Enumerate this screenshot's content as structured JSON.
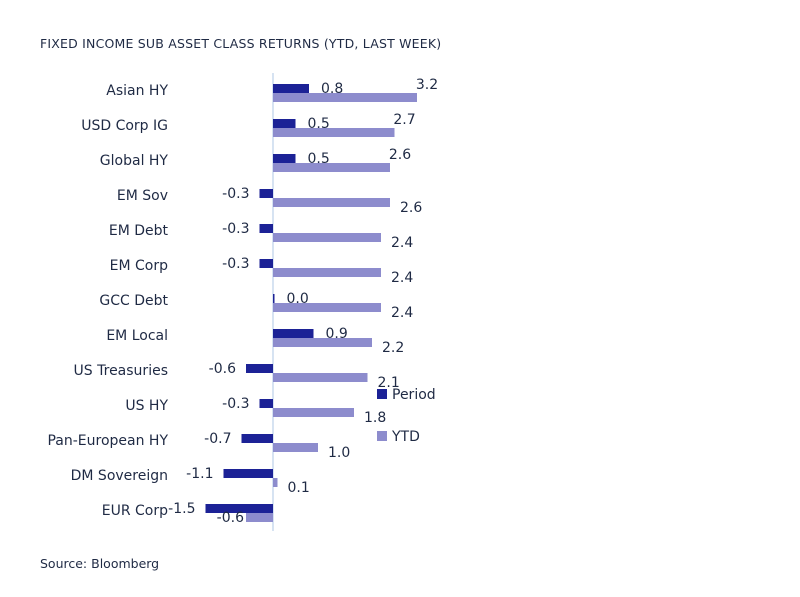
{
  "title": "FIXED INCOME SUB ASSET CLASS RETURNS (YTD, LAST WEEK)",
  "source": "Source: Bloomberg",
  "chart_data": {
    "type": "bar",
    "orientation": "horizontal",
    "categories": [
      "Asian HY",
      "USD Corp IG",
      "Global HY",
      "EM Sov",
      "EM Debt",
      "EM Corp",
      "GCC Debt",
      "EM Local",
      "US Treasuries",
      "US HY",
      "Pan-European HY",
      "DM Sovereign",
      "EUR Corp"
    ],
    "series": [
      {
        "name": "Period",
        "values": [
          0.8,
          0.5,
          0.5,
          -0.3,
          -0.3,
          -0.3,
          0.0,
          0.9,
          -0.6,
          -0.3,
          -0.7,
          -1.1,
          -1.5
        ],
        "labels": [
          "0.8",
          "0.5",
          "0.5",
          "-0.3",
          "-0.3",
          "-0.3",
          "0.0",
          "0.9",
          "-0.6",
          "-0.3",
          "-0.7",
          "-1.1",
          "-1.5"
        ],
        "color": "#1c2296"
      },
      {
        "name": "YTD",
        "values": [
          3.2,
          2.7,
          2.6,
          2.6,
          2.4,
          2.4,
          2.4,
          2.2,
          2.1,
          1.8,
          1.0,
          0.1,
          -0.6
        ],
        "labels": [
          "3.2",
          "2.7",
          "2.6",
          "2.6",
          "2.4",
          "2.4",
          "2.4",
          "2.2",
          "2.1",
          "1.8",
          "1.0",
          "0.1",
          "-0.6"
        ],
        "color": "#8d8ccd"
      }
    ],
    "axis_color": "#bcd0ea",
    "legend": "right"
  }
}
